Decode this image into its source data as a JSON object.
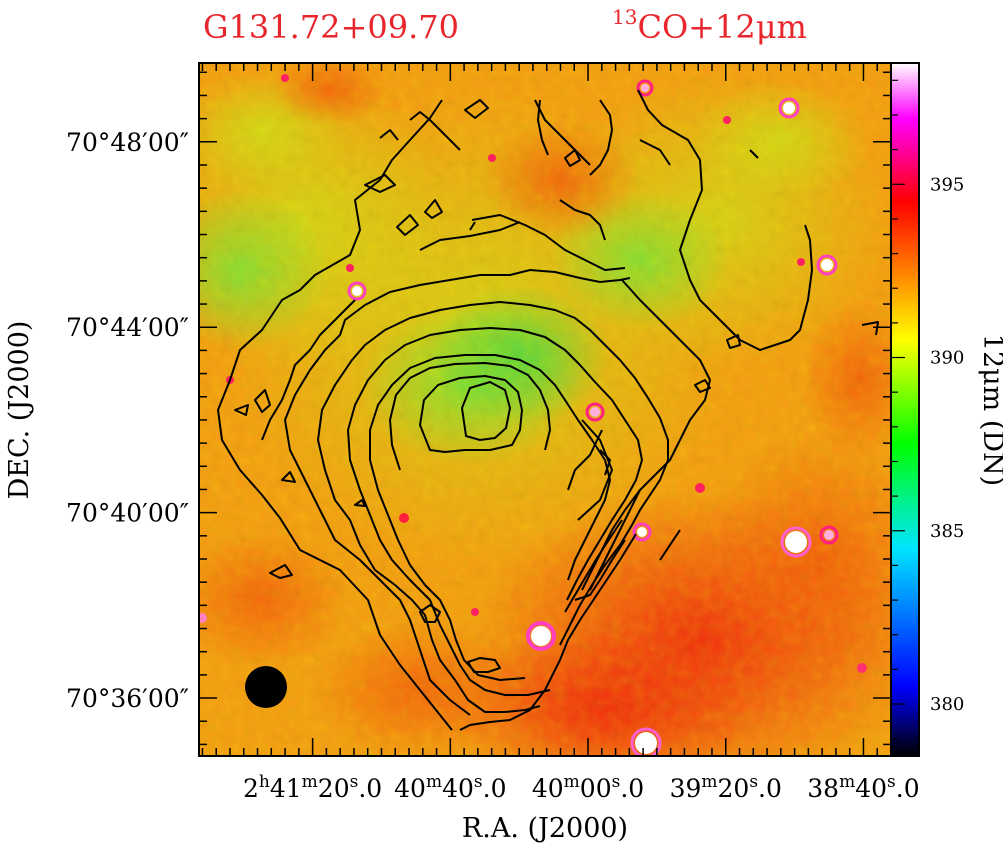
{
  "chart_data": {
    "type": "heatmap",
    "title": "G131.72+09.70",
    "subtitle": "13CO+12μm",
    "subtitle_sup": "13",
    "subtitle_rest": "CO+12μm",
    "xlabel": "R.A. (J2000)",
    "ylabel": "DEC. (J2000)",
    "colorbar_label": "12μm (DN)",
    "colorbar_range": [
      378.5,
      398.5
    ],
    "colorbar_ticks": [
      380,
      385,
      390,
      395
    ],
    "x_ticks": [
      {
        "h": "2",
        "hs": "h",
        "m": "41",
        "ms": "m",
        "s": "20",
        "ss": "s",
        "frac": ".0"
      },
      {
        "h": "",
        "hs": "",
        "m": "40",
        "ms": "m",
        "s": "40",
        "ss": "s",
        "frac": ".0"
      },
      {
        "h": "",
        "hs": "",
        "m": "40",
        "ms": "m",
        "s": "00",
        "ss": "s",
        "frac": ".0"
      },
      {
        "h": "",
        "hs": "",
        "m": "39",
        "ms": "m",
        "s": "20",
        "ss": "s",
        "frac": ".0"
      },
      {
        "h": "",
        "hs": "",
        "m": "38",
        "ms": "m",
        "s": "40",
        "ss": "s",
        "frac": ".0"
      }
    ],
    "x_tick_ra_seconds": [
      9680,
      9640,
      9600,
      9560,
      9520
    ],
    "xlim_ra_seconds": [
      9713,
      9512
    ],
    "y_ticks": [
      "70°48′00″",
      "70°44′00″",
      "70°40′00″",
      "70°36′00″"
    ],
    "y_tick_dec_arcmin": [
      48,
      44,
      40,
      36
    ],
    "ylim_dec_arcmin": [
      34.75,
      49.7
    ],
    "colormap": [
      "#000000",
      "#0000ff",
      "#00e5ff",
      "#00ff00",
      "#ffff00",
      "#ff8000",
      "#ff0000",
      "#ff00ff",
      "#ffffff"
    ],
    "contour_color": "#000000",
    "beam_marker": "filled-circle",
    "grid": false
  }
}
